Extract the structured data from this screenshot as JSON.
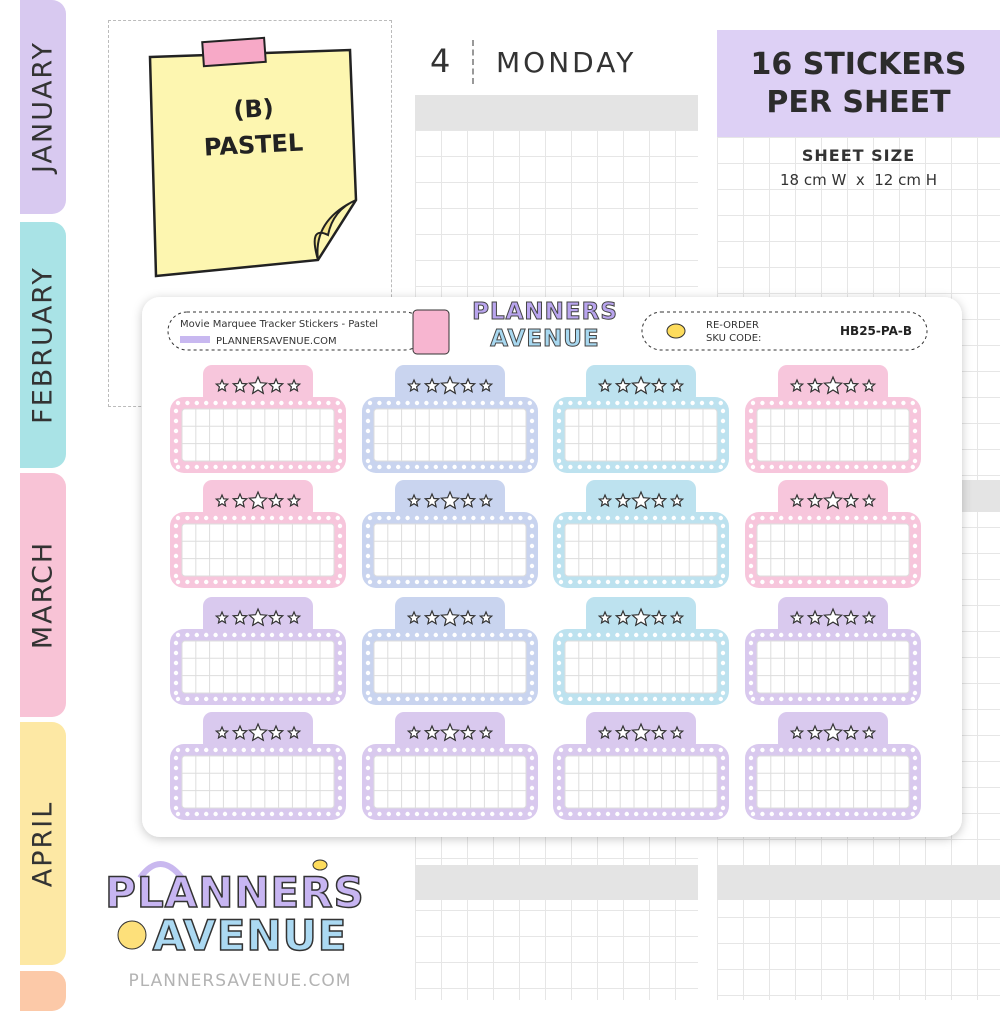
{
  "tabs": [
    "JANUARY",
    "FEBRUARY",
    "MARCH",
    "APRIL"
  ],
  "note": {
    "line1": "(B)",
    "line2": "PASTEL"
  },
  "planner": {
    "day_number": "4",
    "day_name": "MONDAY"
  },
  "badge": {
    "line1": "16 STICKERS",
    "line2": "PER SHEET",
    "size_title": "SHEET SIZE",
    "size": "18 cm W  x  12 cm H"
  },
  "sheet": {
    "product": "Movie Marquee Tracker Stickers - Pastel",
    "website": "PLANNERSAVENUE.COM",
    "logo_line1": "PLANNERS",
    "logo_line2": "AVENUE",
    "reorder": "RE-ORDER",
    "sku_label": "SKU CODE:",
    "sku": "HB25-PA-B"
  },
  "footer": {
    "logo_line1": "PLANNERS",
    "logo_line2": "AVENUE",
    "website": "PLANNERSAVENUE.COM"
  }
}
